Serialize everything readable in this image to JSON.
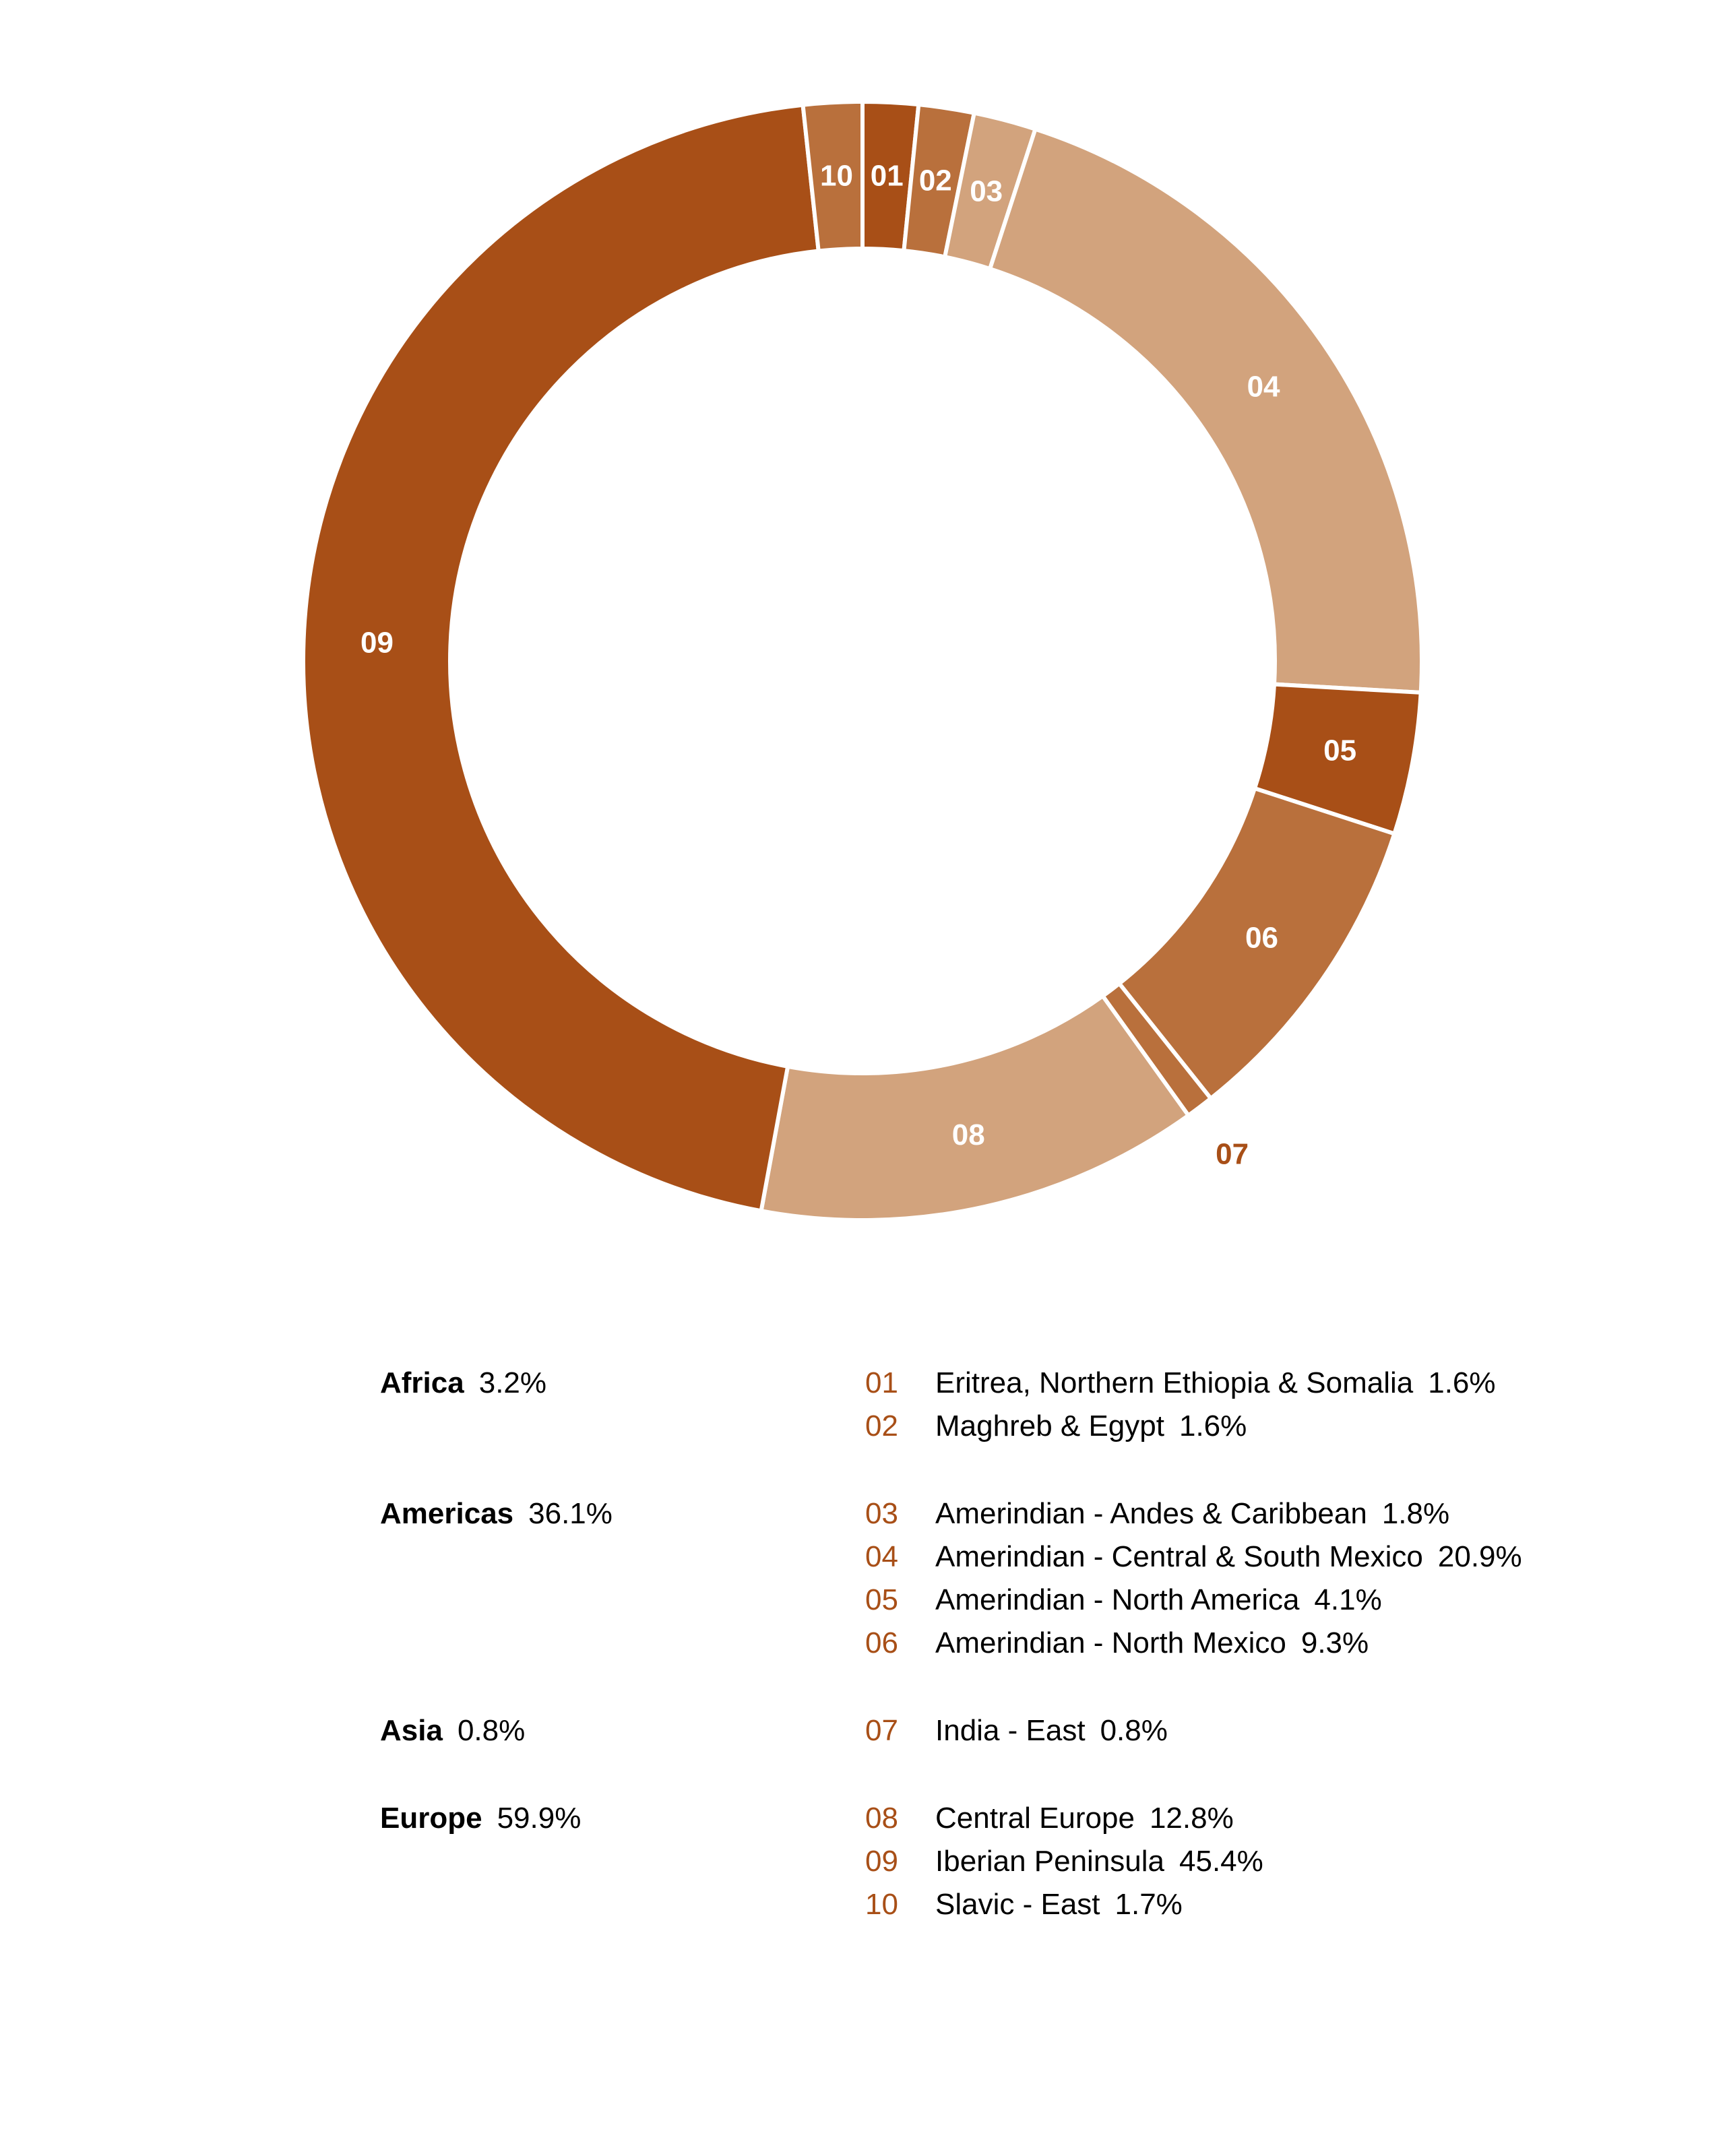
{
  "chart_data": {
    "type": "pie",
    "title": "",
    "colors": {
      "dark": "#a84f17",
      "medium": "#b9703c",
      "light": "#d2a37d",
      "code_text": "#a84f17",
      "slice_label_text": "#ffffff",
      "separator": "#ffffff"
    },
    "slices": [
      {
        "code": "01",
        "label": "Eritrea, Northern Ethiopia & Somalia",
        "value": 1.6,
        "value_text": "1.6%",
        "color": "#a84f17"
      },
      {
        "code": "02",
        "label": "Maghreb & Egypt",
        "value": 1.6,
        "value_text": "1.6%",
        "color": "#b9703c"
      },
      {
        "code": "03",
        "label": "Amerindian - Andes & Caribbean",
        "value": 1.8,
        "value_text": "1.8%",
        "color": "#d2a37d"
      },
      {
        "code": "04",
        "label": "Amerindian - Central & South Mexico",
        "value": 20.9,
        "value_text": "20.9%",
        "color": "#d2a37d"
      },
      {
        "code": "05",
        "label": "Amerindian - North America",
        "value": 4.1,
        "value_text": "4.1%",
        "color": "#a84f17"
      },
      {
        "code": "06",
        "label": "Amerindian - North Mexico",
        "value": 9.3,
        "value_text": "9.3%",
        "color": "#b9703c"
      },
      {
        "code": "07",
        "label": "India - East",
        "value": 0.8,
        "value_text": "0.8%",
        "color": "#b9703c",
        "label_outside": true
      },
      {
        "code": "08",
        "label": "Central Europe",
        "value": 12.8,
        "value_text": "12.8%",
        "color": "#d2a37d"
      },
      {
        "code": "09",
        "label": "Iberian Peninsula",
        "value": 45.4,
        "value_text": "45.4%",
        "color": "#a84f17"
      },
      {
        "code": "10",
        "label": "Slavic - East",
        "value": 1.7,
        "value_text": "1.7%",
        "color": "#b9703c"
      }
    ],
    "groups": [
      {
        "name": "Africa",
        "value": 3.2,
        "value_text": "3.2%",
        "codes": [
          "01",
          "02"
        ]
      },
      {
        "name": "Americas",
        "value": 36.1,
        "value_text": "36.1%",
        "codes": [
          "03",
          "04",
          "05",
          "06"
        ]
      },
      {
        "name": "Asia",
        "value": 0.8,
        "value_text": "0.8%",
        "codes": [
          "07"
        ]
      },
      {
        "name": "Europe",
        "value": 59.9,
        "value_text": "59.9%",
        "codes": [
          "08",
          "09",
          "10"
        ]
      }
    ]
  }
}
